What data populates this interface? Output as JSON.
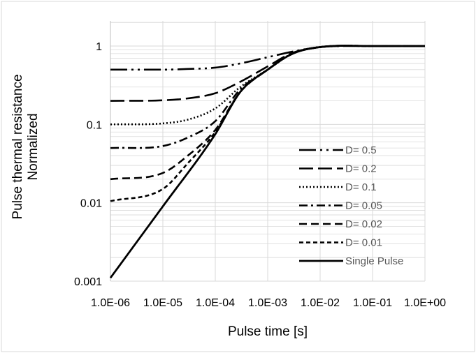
{
  "chart_data": {
    "type": "line",
    "xlabel": "Pulse time [s]",
    "ylabel_lines": [
      "Pulse thermal resistance",
      "Normalized"
    ],
    "x_scale": "log",
    "y_scale": "log",
    "xlim": [
      1e-06,
      1
    ],
    "ylim": [
      0.001,
      2
    ],
    "x_ticks": [
      1e-06,
      1e-05,
      0.0001,
      0.001,
      0.01,
      0.1,
      1
    ],
    "x_tick_labels": [
      "1.0E-06",
      "1.0E-05",
      "1.0E-04",
      "1.0E-03",
      "1.0E-02",
      "1.0E-01",
      "1.0E+00"
    ],
    "y_ticks": [
      0.001,
      0.01,
      0.1,
      1
    ],
    "y_tick_labels": [
      "0.001",
      "0.01",
      "0.1",
      "1"
    ],
    "grid": "major and minor horizontal",
    "legend_position": "bottom-right inside plot",
    "series": [
      {
        "name": "D= 0.5",
        "dash": "dash-dot-dot",
        "x": [
          1e-06,
          1e-05,
          3e-05,
          0.0001,
          0.0003,
          0.001,
          0.003,
          0.01,
          0.1,
          1
        ],
        "values": [
          0.5,
          0.5,
          0.51,
          0.53,
          0.6,
          0.72,
          0.85,
          0.97,
          1.0,
          1.0
        ]
      },
      {
        "name": "D= 0.2",
        "dash": "long-dash",
        "x": [
          1e-06,
          1e-05,
          3e-05,
          0.0001,
          0.0003,
          0.001,
          0.003,
          0.01,
          0.1,
          1
        ],
        "values": [
          0.2,
          0.203,
          0.215,
          0.25,
          0.35,
          0.55,
          0.82,
          0.97,
          1.0,
          1.0
        ]
      },
      {
        "name": "D= 0.1",
        "dash": "dotted",
        "x": [
          1e-06,
          1e-05,
          3e-05,
          0.0001,
          0.0003,
          0.001,
          0.003,
          0.01,
          0.1,
          1
        ],
        "values": [
          0.1,
          0.103,
          0.115,
          0.16,
          0.3,
          0.5,
          0.81,
          0.97,
          1.0,
          1.0
        ]
      },
      {
        "name": "D= 0.05",
        "dash": "dash-dot",
        "x": [
          1e-06,
          1e-05,
          3e-05,
          0.0001,
          0.0003,
          0.001,
          0.003,
          0.01,
          0.1,
          1
        ],
        "values": [
          0.05,
          0.053,
          0.068,
          0.11,
          0.28,
          0.5,
          0.8,
          0.97,
          1.0,
          1.0
        ]
      },
      {
        "name": "D= 0.02",
        "dash": "medium-dash",
        "x": [
          1e-06,
          1e-05,
          3e-05,
          0.0001,
          0.0003,
          0.001,
          0.003,
          0.01,
          0.1,
          1
        ],
        "values": [
          0.02,
          0.024,
          0.04,
          0.085,
          0.26,
          0.5,
          0.8,
          0.97,
          1.0,
          1.0
        ]
      },
      {
        "name": "D= 0.01",
        "dash": "short-dash",
        "x": [
          1e-06,
          1e-05,
          3e-05,
          0.0001,
          0.0003,
          0.001,
          0.003,
          0.01,
          0.1,
          1
        ],
        "values": [
          0.0105,
          0.015,
          0.032,
          0.08,
          0.26,
          0.5,
          0.8,
          0.97,
          1.0,
          1.0
        ]
      },
      {
        "name": "Single Pulse",
        "dash": "solid",
        "x": [
          1e-06,
          1e-05,
          0.0001,
          0.0003,
          0.001,
          0.003,
          0.01,
          0.1,
          1
        ],
        "values": [
          0.0011,
          0.009,
          0.075,
          0.26,
          0.5,
          0.8,
          0.97,
          1.0,
          1.0
        ]
      }
    ],
    "colors": {
      "lines": "#000000",
      "grid": "#d9d9d9",
      "legend_text": "#595959",
      "border": "#d9d9d9"
    }
  }
}
